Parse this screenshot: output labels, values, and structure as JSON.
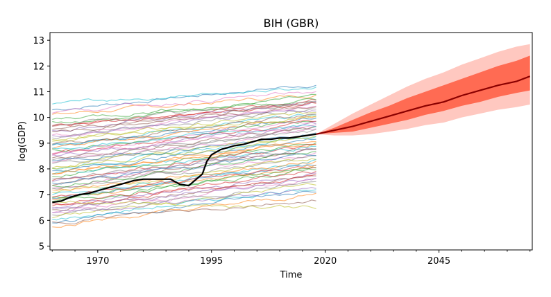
{
  "chart_data": {
    "type": "line",
    "title": "BIH (GBR)",
    "xlabel": "Time",
    "ylabel": "log(GDP)",
    "xlim": [
      1959.5,
      2065.5
    ],
    "ylim": [
      4.85,
      13.3
    ],
    "x_ticks": [
      1970,
      1995,
      2020,
      2045
    ],
    "y_ticks": [
      5,
      6,
      7,
      8,
      9,
      10,
      11,
      12,
      13
    ],
    "grid": false,
    "legend": "none",
    "background_series": {
      "count": 70,
      "x_start": 1960,
      "x_end": 2018,
      "opacity": 0.55,
      "start_values": [
        10.3,
        10.1,
        9.8,
        9.6,
        9.5,
        9.4,
        9.3,
        9.2,
        9.1,
        9.0,
        8.9,
        8.8,
        8.7,
        8.6,
        8.5,
        8.4,
        8.3,
        8.2,
        8.1,
        8.0,
        7.9,
        7.8,
        7.7,
        7.6,
        7.5,
        7.4,
        7.3,
        7.2,
        7.1,
        7.0,
        6.9,
        6.8,
        6.7,
        6.6,
        6.5,
        6.4,
        6.3,
        6.2,
        6.1,
        6.0,
        5.9,
        5.8,
        9.95,
        9.65,
        9.25,
        8.95,
        8.65,
        8.35,
        8.05,
        7.75,
        7.45,
        7.15,
        6.85,
        6.55,
        6.25,
        5.95,
        10.2,
        9.7,
        9.15,
        8.75,
        8.25,
        7.85,
        7.35,
        6.95,
        6.45,
        9.55,
        8.55,
        7.55,
        6.75,
        10.5
      ],
      "end_values": [
        11.3,
        10.9,
        10.8,
        10.7,
        10.6,
        10.6,
        10.5,
        10.4,
        10.2,
        10.1,
        10.0,
        10.0,
        9.9,
        9.8,
        9.7,
        9.6,
        9.5,
        9.5,
        9.4,
        9.3,
        9.2,
        9.1,
        9.0,
        8.9,
        8.8,
        8.7,
        8.6,
        8.5,
        8.4,
        8.3,
        8.2,
        8.1,
        8.0,
        7.9,
        7.8,
        7.7,
        7.6,
        7.5,
        7.4,
        7.3,
        7.2,
        7.0,
        10.7,
        10.5,
        10.3,
        10.1,
        9.9,
        9.6,
        9.2,
        8.9,
        8.6,
        8.3,
        8.0,
        7.7,
        7.2,
        6.8,
        11.0,
        10.6,
        10.0,
        9.7,
        9.3,
        9.0,
        8.7,
        8.1,
        7.6,
        10.4,
        9.7,
        8.8,
        6.5,
        11.2
      ],
      "colors": [
        "#1f77b4",
        "#ff7f0e",
        "#2ca02c",
        "#d62728",
        "#9467bd",
        "#8c564b",
        "#e377c2",
        "#7f7f7f",
        "#bcbd22",
        "#17becf"
      ]
    },
    "series": [
      {
        "color": "#000000",
        "x": [
          1960,
          1962,
          1964,
          1966,
          1968,
          1970,
          1972,
          1974,
          1976,
          1978,
          1980,
          1982,
          1984,
          1986,
          1988,
          1990,
          1992,
          1993,
          1994,
          1995,
          1996,
          1997,
          1998,
          1999,
          2000,
          2002,
          2004,
          2006,
          2008,
          2010,
          2012,
          2014,
          2016,
          2018
        ],
        "y": [
          6.7,
          6.75,
          6.9,
          7.0,
          7.05,
          7.15,
          7.25,
          7.35,
          7.45,
          7.55,
          7.6,
          7.6,
          7.6,
          7.6,
          7.4,
          7.35,
          7.65,
          7.8,
          8.3,
          8.55,
          8.65,
          8.75,
          8.8,
          8.85,
          8.9,
          8.95,
          9.05,
          9.15,
          9.15,
          9.2,
          9.2,
          9.25,
          9.3,
          9.35
        ]
      },
      {
        "color": "#8b0000",
        "x": [
          2018,
          2022,
          2026,
          2030,
          2034,
          2038,
          2042,
          2046,
          2050,
          2054,
          2058,
          2062,
          2065
        ],
        "y": [
          9.35,
          9.5,
          9.65,
          9.85,
          10.05,
          10.25,
          10.45,
          10.6,
          10.85,
          11.05,
          11.25,
          11.4,
          11.6
        ]
      }
    ],
    "bands": [
      {
        "color": "#ffc8c0",
        "x": [
          2018,
          2022,
          2026,
          2030,
          2034,
          2038,
          2042,
          2046,
          2050,
          2054,
          2058,
          2062,
          2065
        ],
        "lower": [
          9.35,
          9.3,
          9.3,
          9.35,
          9.45,
          9.55,
          9.7,
          9.8,
          10.0,
          10.15,
          10.3,
          10.4,
          10.5
        ],
        "upper": [
          9.35,
          9.75,
          10.15,
          10.5,
          10.85,
          11.2,
          11.5,
          11.75,
          12.05,
          12.3,
          12.55,
          12.75,
          12.85
        ]
      },
      {
        "color": "#ff6b53",
        "x": [
          2018,
          2022,
          2026,
          2030,
          2034,
          2038,
          2042,
          2046,
          2050,
          2054,
          2058,
          2062,
          2065
        ],
        "lower": [
          9.35,
          9.4,
          9.45,
          9.6,
          9.75,
          9.9,
          10.1,
          10.25,
          10.45,
          10.6,
          10.8,
          10.95,
          11.05
        ],
        "upper": [
          9.35,
          9.6,
          9.9,
          10.2,
          10.45,
          10.75,
          11.0,
          11.25,
          11.5,
          11.75,
          12.0,
          12.2,
          12.4
        ]
      }
    ]
  }
}
